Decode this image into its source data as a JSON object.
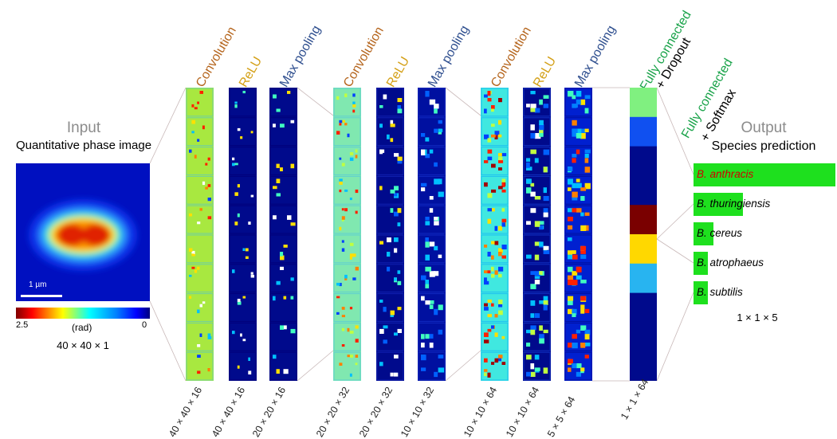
{
  "input": {
    "title": "Input",
    "subtitle": "Quantitative phase image",
    "scalebar_label": "1 µm",
    "colorbar_min_label": "2.5",
    "colorbar_unit_label": "(rad)",
    "colorbar_max_label": "0",
    "dims": "40 × 40 × 1"
  },
  "layers": [
    {
      "name": "Convolution",
      "color": "#b5651d",
      "dims": "40 × 40 × 16",
      "style": "conv1"
    },
    {
      "name": "ReLU",
      "color": "#d4a017",
      "dims": "40 × 40 × 16",
      "style": "relu1"
    },
    {
      "name": "Max pooling",
      "color": "#2f4f8f",
      "dims": "20 × 20 × 16",
      "style": "pool1"
    },
    {
      "name": "Convolution",
      "color": "#b5651d",
      "dims": "20 × 20 × 32",
      "style": "conv2"
    },
    {
      "name": "ReLU",
      "color": "#d4a017",
      "dims": "20 × 20 × 32",
      "style": "relu2"
    },
    {
      "name": "Max pooling",
      "color": "#2f4f8f",
      "dims": "10 × 10 × 32",
      "style": "pool2"
    },
    {
      "name": "Convolution",
      "color": "#b5651d",
      "dims": "10 × 10 × 64",
      "style": "conv3"
    },
    {
      "name": "ReLU",
      "color": "#d4a017",
      "dims": "10 × 10 × 64",
      "style": "relu3"
    },
    {
      "name": "Max pooling",
      "color": "#2f4f8f",
      "dims": "5 × 5 × 64",
      "style": "pool3"
    }
  ],
  "fc1": {
    "name": "Fully connected",
    "name_color": "#1aa34a",
    "extra": "+ Dropout",
    "dims": "1 × 1 × 64",
    "segment_colors": [
      "#80f080",
      "#1050f0",
      "#000a8c",
      "#000a8c",
      "#7a0000",
      "#ffd800",
      "#28b4f0",
      "#000a8c",
      "#000a8c",
      "#000a8c"
    ]
  },
  "fc2": {
    "name": "Fully connected",
    "name_color": "#1aa34a",
    "extra": "+ Softmax"
  },
  "output": {
    "title": "Output",
    "subtitle": "Species prediction",
    "dims": "1 × 1 × 5",
    "bar_color": "#1ee01e",
    "species": [
      {
        "name": "B. anthracis",
        "score": 1.0,
        "text_color": "#d00000"
      },
      {
        "name": "B. thuringiensis",
        "score": 0.35,
        "text_color": "#000000"
      },
      {
        "name": "B. cereus",
        "score": 0.14,
        "text_color": "#000000"
      },
      {
        "name": "B. atrophaeus",
        "score": 0.09,
        "text_color": "#000000"
      },
      {
        "name": "B. subtilis",
        "score": 0.08,
        "text_color": "#000000"
      }
    ]
  }
}
